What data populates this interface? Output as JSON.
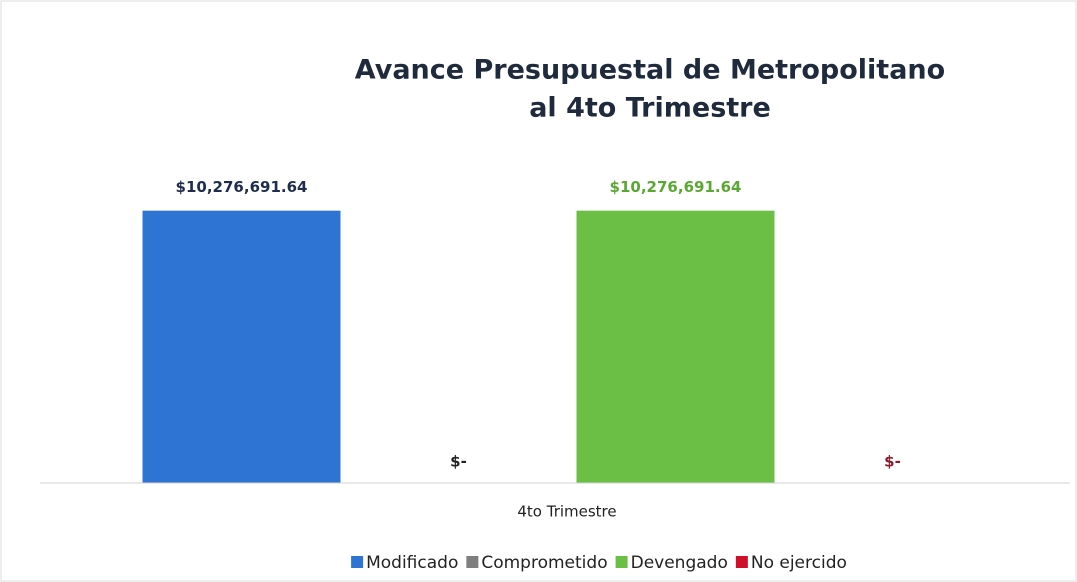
{
  "chart_data": {
    "type": "bar",
    "title": "Avance Presupuestal de Metropolitano al 4to Trimestre",
    "title_lines": [
      "Avance Presupuestal de Metropolitano",
      "al 4to Trimestre"
    ],
    "categories": [
      "4to Trimestre"
    ],
    "series": [
      {
        "name": "Modificado",
        "color": "#2e74d3",
        "label_color": "#1f2d4d",
        "values": [
          10276691.64
        ],
        "value_labels": [
          "$10,276,691.64"
        ]
      },
      {
        "name": "Comprometido",
        "color": "#7f7f7f",
        "label_color": "#222222",
        "values": [
          0
        ],
        "value_labels": [
          "$-"
        ]
      },
      {
        "name": "Devengado",
        "color": "#6cbf45",
        "label_color": "#5aa832",
        "values": [
          10276691.64
        ],
        "value_labels": [
          "$10,276,691.64"
        ]
      },
      {
        "name": "No ejercido",
        "color": "#d0102b",
        "label_color": "#8b1a2b",
        "values": [
          0
        ],
        "value_labels": [
          "$-"
        ]
      }
    ],
    "ylim": [
      0,
      12000000
    ],
    "legend": "bottom"
  }
}
